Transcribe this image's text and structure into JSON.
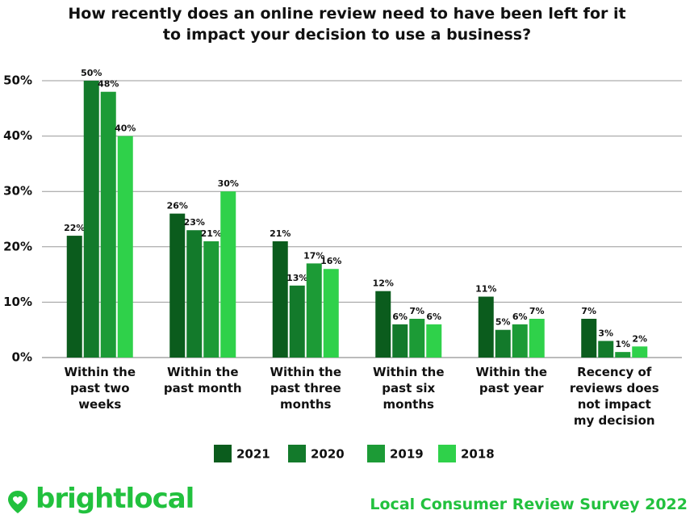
{
  "chart_data": {
    "type": "bar",
    "title": "How recently does an online review need to have been left for it to impact your decision to use a business?",
    "categories": [
      "Within the past two weeks",
      "Within the past month",
      "Within the past three months",
      "Within the past six months",
      "Within the past year",
      "Recency of reviews does not impact my decision"
    ],
    "series": [
      {
        "name": "2021",
        "color": "#0b5c1d",
        "values": [
          22,
          26,
          21,
          12,
          11,
          7
        ],
        "value_labels": [
          "22%",
          "26%",
          "21%",
          "12%",
          "11%",
          "7%"
        ]
      },
      {
        "name": "2020",
        "color": "#137a2b",
        "values": [
          50,
          23,
          13,
          6,
          5,
          3
        ],
        "value_labels": [
          "50%",
          "23%",
          "13%",
          "6%",
          "5%",
          "3%"
        ]
      },
      {
        "name": "2019",
        "color": "#1c9b36",
        "values": [
          48,
          21,
          17,
          7,
          6,
          1
        ],
        "value_labels": [
          "48%",
          "21%",
          "17%",
          "7%",
          "6%",
          "1%"
        ]
      },
      {
        "name": "2018",
        "color": "#2fd14a",
        "values": [
          40,
          30,
          16,
          6,
          7,
          2
        ],
        "value_labels": [
          "40%",
          "30%",
          "16%",
          "6%",
          "7%",
          "2%"
        ]
      }
    ],
    "ylim": [
      0,
      50
    ],
    "yticks": [
      {
        "value": 0,
        "label": "0%"
      },
      {
        "value": 10,
        "label": "10%"
      },
      {
        "value": 20,
        "label": "20%"
      },
      {
        "value": 30,
        "label": "30%"
      },
      {
        "value": 40,
        "label": "40%"
      },
      {
        "value": 50,
        "label": "50%"
      }
    ],
    "grid": true,
    "legend": "bottom"
  },
  "brand": "brightlocal",
  "footer": "Local Consumer Review Survey 2022"
}
